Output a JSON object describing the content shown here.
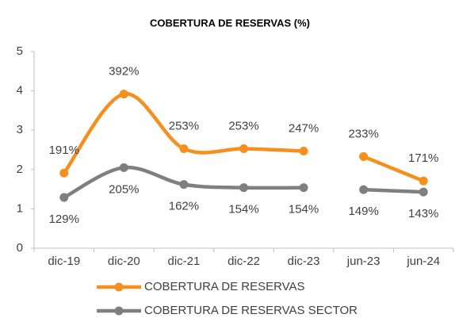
{
  "chart_data": {
    "type": "line",
    "title": "COBERTURA DE RESERVAS (%)",
    "categories": [
      "dic-19",
      "dic-20",
      "dic-21",
      "dic-22",
      "dic-23",
      "jun-23",
      "jun-24"
    ],
    "series": [
      {
        "name": "COBERTURA DE RESERVAS",
        "color": "#f5901e",
        "values": [
          1.91,
          3.92,
          2.53,
          2.53,
          2.47,
          2.33,
          1.71
        ],
        "value_labels": [
          "191%",
          "392%",
          "253%",
          "253%",
          "247%",
          "233%",
          "171%"
        ]
      },
      {
        "name": "COBERTURA DE RESERVAS SECTOR",
        "color": "#7f7f7f",
        "values": [
          1.29,
          2.05,
          1.62,
          1.54,
          1.54,
          1.49,
          1.43
        ],
        "value_labels": [
          "129%",
          "205%",
          "162%",
          "154%",
          "154%",
          "149%",
          "143%"
        ]
      }
    ],
    "gap_after": 4,
    "smooth": true,
    "ylim": [
      0,
      5
    ],
    "yticks": [
      0,
      1,
      2,
      3,
      4,
      5
    ],
    "grid": false,
    "legend": "bottom"
  }
}
